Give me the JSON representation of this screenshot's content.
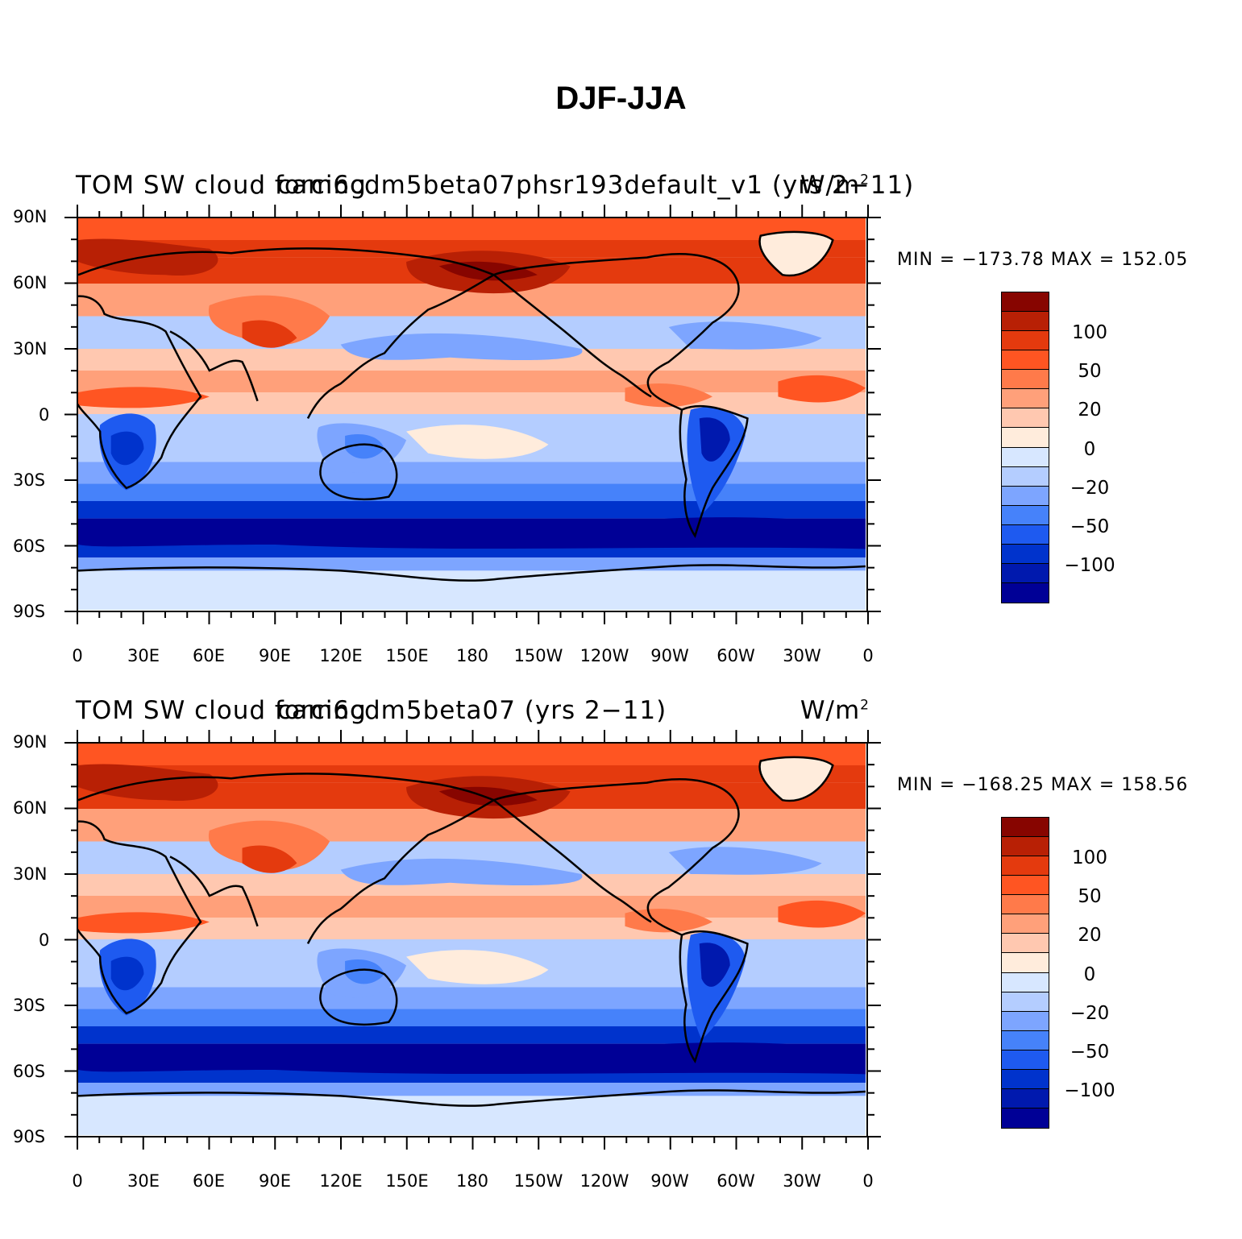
{
  "figure": {
    "title": "DJF-JJA"
  },
  "colorbar": {
    "colors": [
      "#000096",
      "#0019AE",
      "#0033CC",
      "#1E5AF0",
      "#4682FA",
      "#7DA5FF",
      "#B4CDFF",
      "#D7E7FF",
      "#FFECDC",
      "#FFC8B0",
      "#FFA07A",
      "#FF7A4A",
      "#FF5522",
      "#E43A0E",
      "#B82005",
      "#870500"
    ],
    "labels": [
      "100",
      "50",
      "20",
      "0",
      "−20",
      "−50",
      "−100"
    ]
  },
  "panels": [
    {
      "variable": "TOM SW cloud forcing",
      "case": "cam6cdm5beta07phsr193default_v1 (yrs 2−11)",
      "units_base": "W/m",
      "units_exp": "2",
      "min_label": "MIN = −173.78",
      "max_label": "MAX = 152.05"
    },
    {
      "variable": "TOM SW cloud forcing",
      "case": "cam6cdm5beta07 (yrs 2−11)",
      "units_base": "W/m",
      "units_exp": "2",
      "min_label": "MIN = −168.25",
      "max_label": "MAX = 158.56"
    }
  ],
  "axes": {
    "y_ticks": [
      "90N",
      "60N",
      "30N",
      "0",
      "30S",
      "60S",
      "90S"
    ],
    "x_ticks": [
      "0",
      "30E",
      "60E",
      "90E",
      "120E",
      "150E",
      "180",
      "150W",
      "120W",
      "90W",
      "60W",
      "30W",
      "0"
    ]
  },
  "chart_data": [
    {
      "type": "heatmap",
      "title": "TOM SW cloud forcing — cam6cdm5beta07phsr193default_v1 (yrs 2−11)",
      "units": "W/m^2",
      "min": -173.78,
      "max": 152.05,
      "lon_range": [
        0,
        360
      ],
      "lat_range": [
        -90,
        90
      ],
      "colorbar_levels": [
        100,
        50,
        20,
        0,
        -20,
        -50,
        -100
      ]
    },
    {
      "type": "heatmap",
      "title": "TOM SW cloud forcing — cam6cdm5beta07 (yrs 2−11)",
      "units": "W/m^2",
      "min": -168.25,
      "max": 158.56,
      "lon_range": [
        0,
        360
      ],
      "lat_range": [
        -90,
        90
      ],
      "colorbar_levels": [
        100,
        50,
        20,
        0,
        -20,
        -50,
        -100
      ]
    }
  ]
}
